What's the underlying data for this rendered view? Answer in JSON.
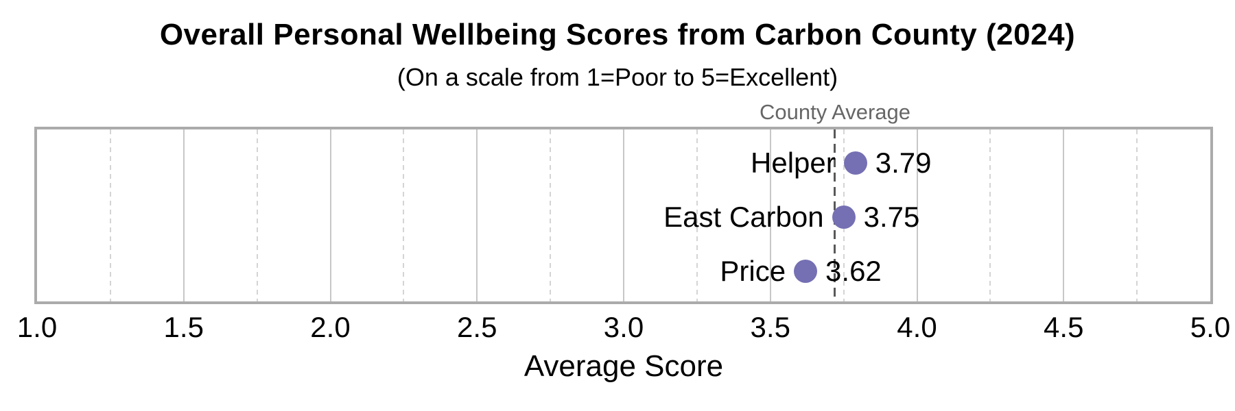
{
  "chart_data": {
    "type": "scatter",
    "subtype": "horizontal-dot-plot",
    "title": "Overall Personal Wellbeing Scores from Carbon County (2024)",
    "subtitle": "(On a scale from 1=Poor to 5=Excellent)",
    "xlabel": "Average Score",
    "categories": [
      "Helper",
      "East Carbon",
      "Price"
    ],
    "values": [
      3.79,
      3.75,
      3.62
    ],
    "value_labels": [
      "3.79",
      "3.75",
      "3.62"
    ],
    "xlim": [
      1.0,
      5.0
    ],
    "x_tick_labels": [
      "1.0",
      "1.5",
      "2.0",
      "2.5",
      "3.0",
      "3.5",
      "4.0",
      "4.5",
      "5.0"
    ],
    "x_major_gridlines": [
      1.5,
      2.0,
      2.5,
      3.0,
      3.5,
      4.0,
      4.5
    ],
    "x_minor_gridlines": [
      1.25,
      1.75,
      2.25,
      2.75,
      3.25,
      3.75,
      4.25,
      4.75
    ],
    "reference_line": {
      "label": "County Average",
      "value": 3.72
    },
    "grid": true,
    "legend": false,
    "row_center_fractions": [
      0.195,
      0.51,
      0.825
    ],
    "colors": {
      "dot": "#7570b3",
      "reference_line": "#595959",
      "major_grid": "#c7c7c7",
      "minor_grid": "#d4d4d4",
      "frame": "#ababab",
      "annotation_text": "#666666",
      "text": "#000000"
    }
  }
}
